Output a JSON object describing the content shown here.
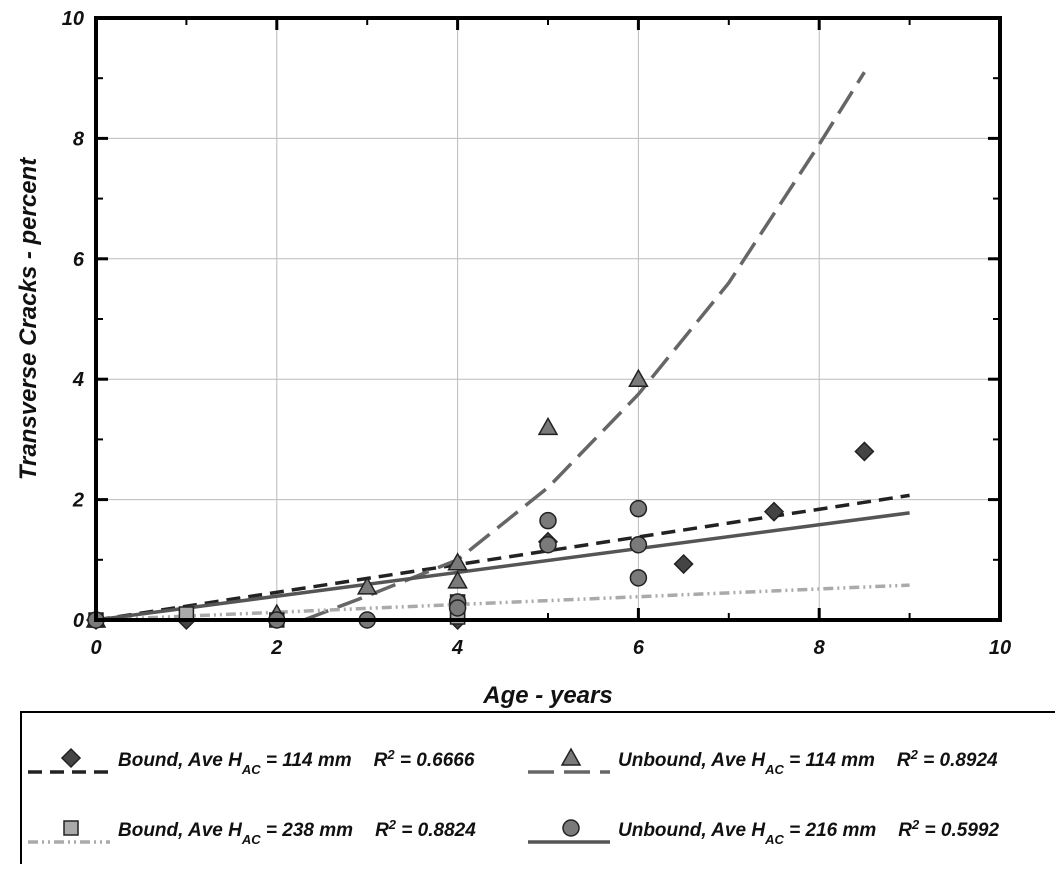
{
  "chart_data": {
    "type": "scatter",
    "x_label": "Age - years",
    "y_label": "Transverse Cracks - percent",
    "xlim": [
      0,
      10
    ],
    "ylim": [
      0,
      10
    ],
    "xticks": [
      0,
      2,
      4,
      6,
      8,
      10
    ],
    "yticks": [
      0,
      2,
      4,
      6,
      8,
      10
    ],
    "xminorticks": [
      1,
      3,
      5,
      7,
      9
    ],
    "yminorticks": [
      1,
      3,
      5,
      7,
      9
    ],
    "grid": true,
    "series": [
      {
        "name": [
          "Bound, Ave H",
          "AC",
          " = 114 mm"
        ],
        "r_squared": [
          "R",
          "2",
          " = 0.6666"
        ],
        "marker": "diamond",
        "color": "#444444",
        "line_color": "#222222",
        "dash": "14,8",
        "x": [
          0,
          1,
          4,
          5,
          6.5,
          7.5,
          8.5
        ],
        "values": [
          0,
          0,
          0,
          1.3,
          0.93,
          1.8,
          2.8
        ],
        "trend": {
          "x": [
            0,
            9
          ],
          "values": [
            0,
            2.07
          ]
        }
      },
      {
        "name": [
          "Unbound, Ave H",
          "AC",
          " = 114 mm"
        ],
        "r_squared": [
          "R",
          "2",
          " = 0.8924"
        ],
        "marker": "triangle",
        "color": "#7a7a7a",
        "line_color": "#666666",
        "dash": "26,10",
        "x": [
          0,
          2,
          3,
          4,
          4,
          5,
          6
        ],
        "values": [
          0,
          0.1,
          0.55,
          0.95,
          0.65,
          3.2,
          4.0
        ],
        "trend": {
          "x": [
            2.3,
            3,
            4,
            5,
            6,
            7,
            8,
            8.5
          ],
          "values": [
            0,
            0.4,
            1.0,
            2.2,
            3.75,
            5.6,
            7.9,
            9.1
          ]
        }
      },
      {
        "name": [
          "Bound, Ave H",
          "AC",
          " = 238 mm"
        ],
        "r_squared": [
          "R",
          "2",
          " = 0.8824"
        ],
        "marker": "square",
        "color": "#aaaaaa",
        "line_color": "#aaaaaa",
        "dash": "10,4,2,4,2,4",
        "x": [
          0,
          1,
          2,
          4,
          4,
          4
        ],
        "values": [
          0,
          0.1,
          0,
          0.3,
          0.15,
          0.05
        ],
        "trend": {
          "x": [
            0,
            9
          ],
          "values": [
            0,
            0.58
          ]
        }
      },
      {
        "name": [
          "Unbound, Ave H",
          "AC",
          " = 216 mm"
        ],
        "r_squared": [
          "R",
          "2",
          " = 0.5992"
        ],
        "marker": "circle",
        "color": "#7a7a7a",
        "line_color": "#555555",
        "dash": "",
        "x": [
          0,
          2,
          3,
          4,
          4,
          5,
          5,
          6,
          6,
          6
        ],
        "values": [
          0,
          0,
          0,
          0.3,
          0.2,
          1.65,
          1.25,
          1.85,
          1.25,
          0.7
        ],
        "trend": {
          "x": [
            0,
            9
          ],
          "values": [
            0,
            1.78
          ]
        }
      }
    ]
  }
}
